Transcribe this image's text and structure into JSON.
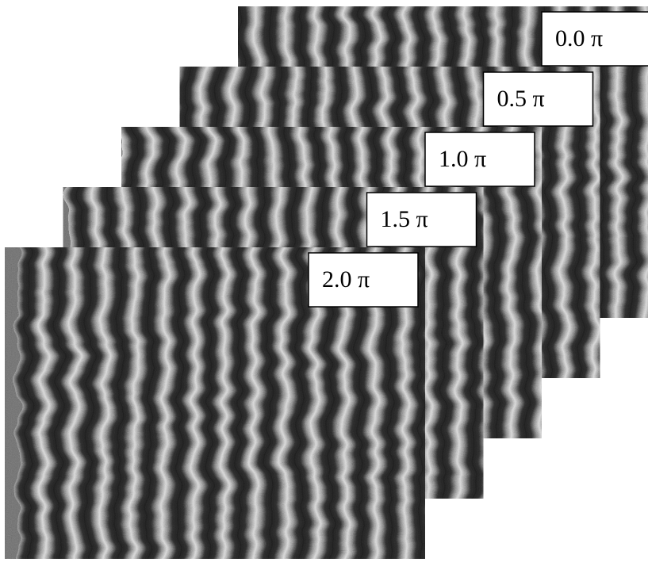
{
  "labels": [
    "0.0 π",
    "0.5 π",
    "1.0 π",
    "1.5 π",
    "2.0 π"
  ]
}
